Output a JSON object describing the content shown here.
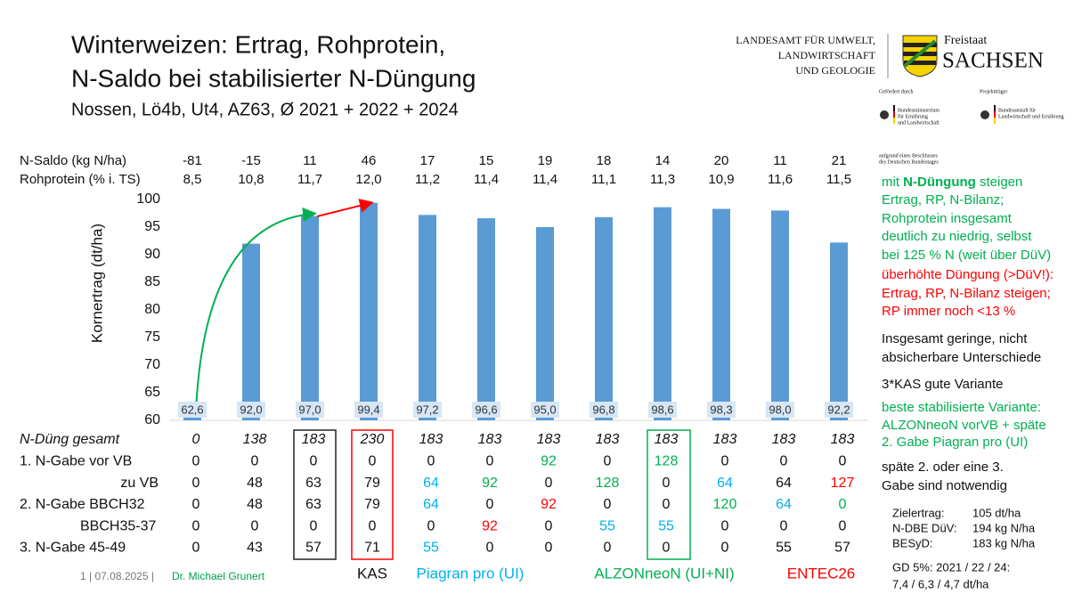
{
  "header": {
    "title_lines": [
      "Winterweizen: Ertrag, Rohprotein,",
      "N-Saldo bei stabilisierter N-Düngung"
    ],
    "subtitle": "Nossen, Lö4b, Ut4, AZ63, Ø 2021 + 2022 + 2024",
    "lfulg": [
      "LANDESAMT FÜR UMWELT,",
      "LANDWIRTSCHAFT",
      "UND GEOLOGIE"
    ],
    "freistaat": "Freistaat",
    "sachsen": "SACHSEN",
    "funded_by": "Gefördert durch",
    "bmel": [
      "Bundesministerium",
      "für Ernährung",
      "und Landwirtschaft"
    ],
    "carrier": "Projektträger",
    "ble": [
      "Bundesanstalt für",
      "Landwirtschaft und Ernährung"
    ],
    "bundestag": [
      "aufgrund eines Beschlusses",
      "des Deutschen Bundestages"
    ]
  },
  "chart_data": {
    "type": "bar",
    "y_label": "Kornertrag (dt/ha)",
    "categories": [
      null,
      null,
      null,
      null,
      null,
      null,
      null,
      null,
      null,
      null,
      null,
      null
    ],
    "values": [
      62.6,
      92.0,
      97.0,
      99.4,
      97.2,
      96.6,
      95.0,
      96.8,
      98.6,
      98.3,
      98.0,
      92.2
    ],
    "value_labels": [
      "62,6",
      "92,0",
      "97,0",
      "99,4",
      "97,2",
      "96,6",
      "95,0",
      "96,8",
      "98,6",
      "98,3",
      "98,0",
      "92,2"
    ],
    "color": "#5b9bd5",
    "ylim": [
      60,
      100
    ],
    "yticks": [
      60,
      65,
      70,
      75,
      80,
      85,
      90,
      95,
      100
    ],
    "grid": false
  },
  "top_rows": [
    {
      "label": "N-Saldo (kg N/ha)",
      "values": [
        -81,
        -15,
        11,
        46,
        17,
        15,
        19,
        18,
        14,
        20,
        11,
        21
      ]
    },
    {
      "label": "Rohprotein (% i. TS)",
      "values": [
        "8,5",
        "10,8",
        "11,7",
        "12,0",
        "11,2",
        "11,4",
        "11,4",
        "11,1",
        "11,3",
        "10,9",
        "11,6",
        "11,5"
      ]
    }
  ],
  "table": {
    "rows": [
      {
        "label": "N-Düng gesamt",
        "values": [
          0,
          138,
          183,
          230,
          183,
          183,
          183,
          183,
          183,
          183,
          183,
          183
        ],
        "colors": [
          "k",
          "k",
          "k",
          "k",
          "k",
          "k",
          "k",
          "k",
          "k",
          "k",
          "k",
          "k"
        ]
      },
      {
        "label": "1. N-Gabe vor VB",
        "values": [
          0,
          0,
          0,
          0,
          0,
          0,
          92,
          0,
          128,
          0,
          0,
          0
        ],
        "colors": [
          "k",
          "k",
          "k",
          "k",
          "k",
          "k",
          "g",
          "k",
          "g",
          "k",
          "k",
          "k"
        ]
      },
      {
        "label": "zu VB",
        "values": [
          0,
          48,
          63,
          79,
          64,
          92,
          0,
          128,
          0,
          64,
          64,
          127
        ],
        "colors": [
          "k",
          "k",
          "k",
          "k",
          "b",
          "g",
          "k",
          "g",
          "k",
          "b",
          "k",
          "r"
        ]
      },
      {
        "label": "2. N-Gabe BBCH32",
        "values": [
          0,
          48,
          63,
          79,
          64,
          0,
          92,
          0,
          0,
          120,
          64,
          0
        ],
        "colors": [
          "k",
          "k",
          "k",
          "k",
          "b",
          "k",
          "r",
          "k",
          "k",
          "g",
          "b",
          "g"
        ]
      },
      {
        "label": "BBCH35-37",
        "values": [
          0,
          0,
          0,
          0,
          0,
          92,
          0,
          55,
          55,
          0,
          0,
          0
        ],
        "colors": [
          "k",
          "k",
          "k",
          "k",
          "k",
          "r",
          "k",
          "b",
          "b",
          "k",
          "k",
          "k"
        ]
      },
      {
        "label": "3. N-Gabe  45-49",
        "values": [
          0,
          43,
          57,
          71,
          55,
          0,
          0,
          0,
          0,
          0,
          55,
          57
        ],
        "colors": [
          "k",
          "k",
          "k",
          "k",
          "b",
          "k",
          "k",
          "k",
          "k",
          "k",
          "k",
          "k"
        ]
      }
    ]
  },
  "palette": {
    "k": "#111111",
    "g": "#00b050",
    "b": "#00b0f0",
    "r": "#ff0000"
  },
  "notes": [
    {
      "color": "g",
      "lead": "mit ",
      "bold": "N-Düngung",
      "rest": " steigen",
      "lines": [
        "Ertrag, RP, N-Bilanz;",
        "Rohprotein insgesamt",
        "deutlich zu niedrig, selbst",
        "bei 125 % N (weit über DüV)"
      ]
    },
    {
      "color": "r",
      "lines": [
        "überhöhte Düngung (>DüV!):",
        "Ertrag, RP, N-Bilanz steigen;",
        "RP immer noch <13 %"
      ]
    },
    {
      "color": "k",
      "lines": [
        "Insgesamt geringe, nicht",
        "absicherbare Unterschiede"
      ]
    },
    {
      "color": "k",
      "lines": [
        "3*KAS gute Variante"
      ]
    },
    {
      "color": "g",
      "lines": [
        "beste stabilisierte Variante:",
        "ALZONneoN vorVB + späte",
        "2. Gabe Piagran pro (UI)"
      ]
    },
    {
      "color": "k",
      "lines": [
        "späte 2. oder eine 3.",
        "Gabe sind notwendig"
      ]
    }
  ],
  "targets": [
    [
      "Zielertrag:",
      "105 dt/ha"
    ],
    [
      "N-DBE DüV:",
      "194 kg N/ha"
    ],
    [
      "BESyD:",
      "183 kg N/ha"
    ]
  ],
  "gd": [
    "GD 5%: 2021 / 22 / 24:",
    "7,4 / 6,3 / 4,7 dt/ha"
  ],
  "products": [
    {
      "name": "KAS",
      "color": "k"
    },
    {
      "name": "Piagran pro (UI)",
      "color": "b"
    },
    {
      "name": "ALZONneoN (UI+NI)",
      "color": "g"
    },
    {
      "name": "ENTEC26",
      "color": "r"
    }
  ],
  "footer": {
    "page_date": "1 | 07.08.2025 |",
    "author": "Dr. Michael Grunert"
  }
}
